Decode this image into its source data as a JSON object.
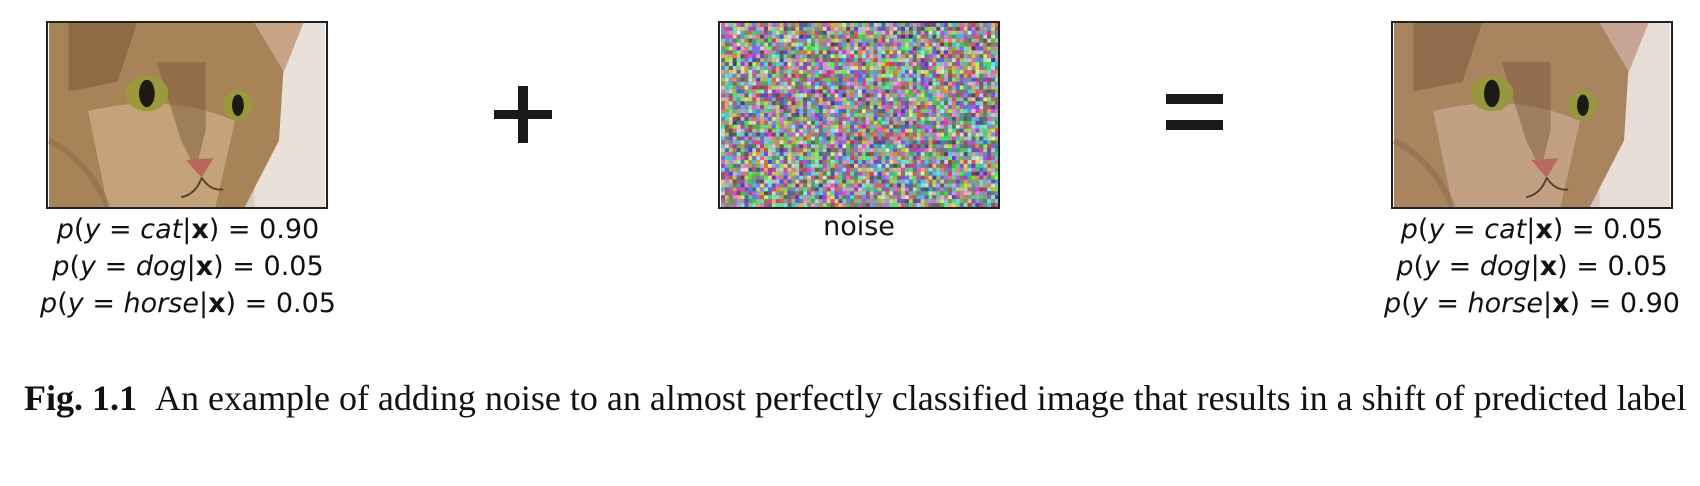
{
  "figure": {
    "left": {
      "lines": [
        {
          "cls": "cat",
          "value": "0.90"
        },
        {
          "cls": "dog",
          "value": "0.05"
        },
        {
          "cls": "horse",
          "value": "0.05"
        }
      ]
    },
    "noise_label": "noise",
    "right": {
      "lines": [
        {
          "cls": "cat",
          "value": "0.05"
        },
        {
          "cls": "dog",
          "value": "0.05"
        },
        {
          "cls": "horse",
          "value": "0.90"
        }
      ]
    },
    "ops": {
      "plus": "+",
      "equals": "="
    }
  },
  "formula": {
    "p": "p",
    "y": "y",
    "x": "x",
    "eq": "="
  },
  "caption": {
    "label": "Fig. 1.1",
    "text": "An example of adding noise to an almost perfectly classified image that results in a shift of predicted label"
  },
  "colors": {
    "fur": "#b08a60",
    "dark_fur": "#6e5234",
    "eye": "#9a9a3c",
    "nose": "#b8685a",
    "background": "#e6dcd2"
  }
}
